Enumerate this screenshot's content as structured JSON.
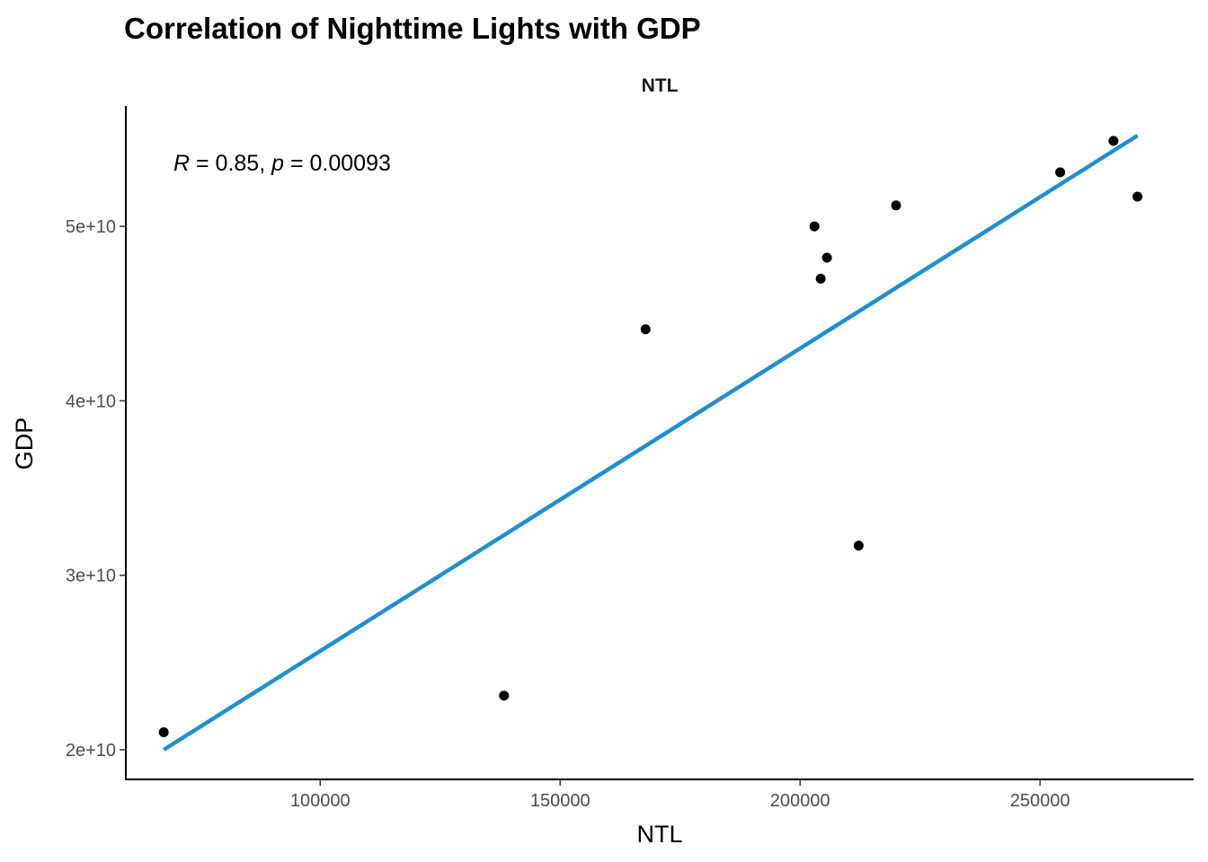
{
  "chart_data": {
    "type": "scatter",
    "title": "Correlation of Nighttime Lights with GDP",
    "facet_label": "NTL",
    "xlabel": "NTL",
    "ylabel": "GDP",
    "xlim": [
      59500,
      282000
    ],
    "ylim": [
      18300000000,
      56900000000
    ],
    "x_ticks": [
      100000,
      150000,
      200000,
      250000
    ],
    "x_tick_labels": [
      "100000",
      "150000",
      "200000",
      "250000"
    ],
    "y_ticks": [
      20000000000,
      30000000000,
      40000000000,
      50000000000
    ],
    "y_tick_labels": [
      "2e+10",
      "3e+10",
      "4e+10",
      "5e+10"
    ],
    "points": [
      {
        "x": 67400,
        "y": 21000000000
      },
      {
        "x": 138300,
        "y": 23100000000
      },
      {
        "x": 167800,
        "y": 44100000000
      },
      {
        "x": 203000,
        "y": 50000000000
      },
      {
        "x": 204300,
        "y": 47000000000
      },
      {
        "x": 205600,
        "y": 48200000000
      },
      {
        "x": 212200,
        "y": 31700000000
      },
      {
        "x": 220000,
        "y": 51200000000
      },
      {
        "x": 254200,
        "y": 53100000000
      },
      {
        "x": 265300,
        "y": 54900000000
      },
      {
        "x": 270300,
        "y": 51700000000
      }
    ],
    "regression_line": {
      "x": [
        67400,
        270300
      ],
      "y": [
        20000000000,
        55200000000
      ],
      "color": "#1f8fd0"
    },
    "point_color": "#000000",
    "annotation": {
      "r_symbol": "R",
      "r_text": " = 0.85, ",
      "p_symbol": "p",
      "p_text": " = 0.00093"
    },
    "grid": false,
    "legend": "none"
  }
}
